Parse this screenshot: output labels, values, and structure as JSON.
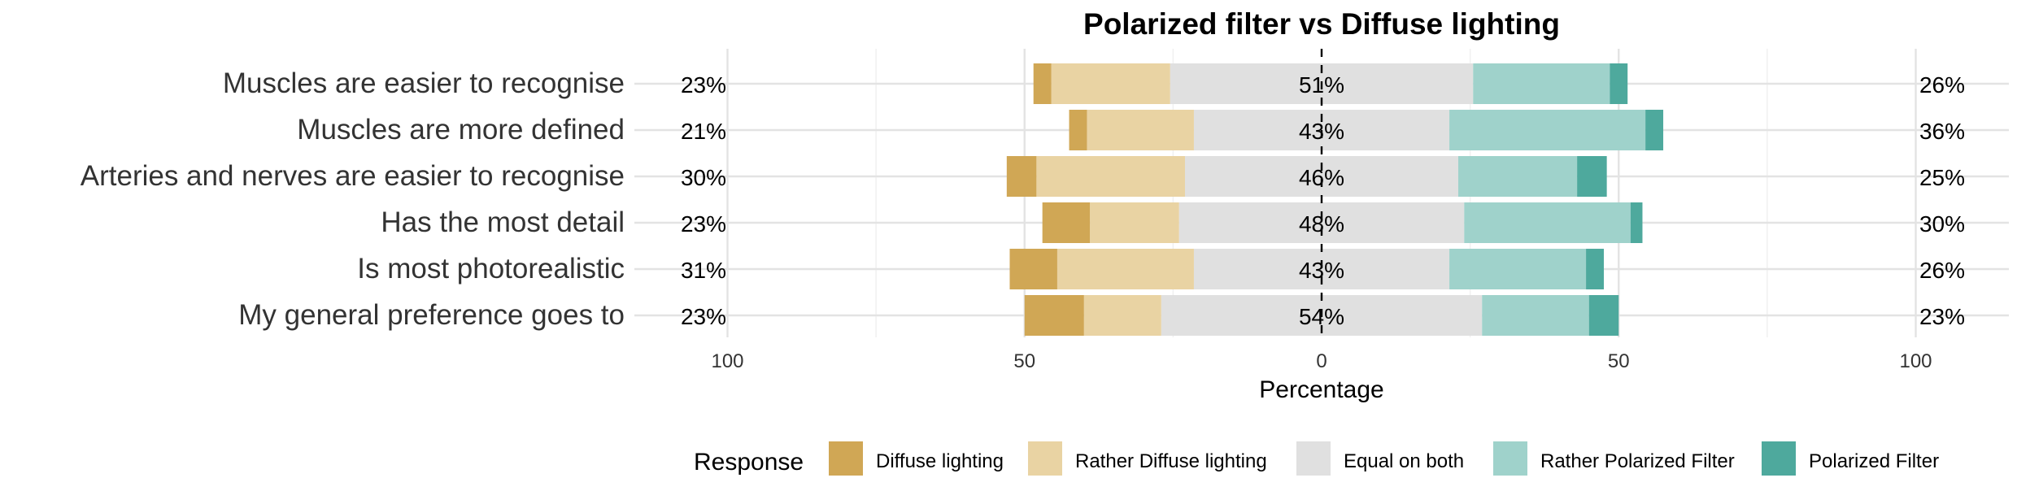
{
  "chart_data": {
    "type": "bar",
    "orientation": "horizontal",
    "stacking": "diverging",
    "title": "Polarized filter vs Diffuse lighting",
    "xlabel": "Percentage",
    "ylabel": "",
    "xlim": [
      -100,
      100
    ],
    "x_ticks": [
      -100,
      -50,
      0,
      50,
      100
    ],
    "x_tick_labels": [
      "100",
      "50",
      "0",
      "50",
      "100"
    ],
    "grid": true,
    "legend_title": "Response",
    "legend_position": "bottom",
    "categories": [
      "Muscles are easier to recognise",
      "Muscles are more defined",
      "Arteries and nerves are easier to recognise",
      "Has the most detail",
      "Is most photorealistic",
      "My general preference goes to"
    ],
    "series": [
      {
        "name": "Diffuse lighting",
        "color": "#d0a755",
        "side": "negative",
        "values": [
          3,
          3,
          5,
          8,
          8,
          10
        ]
      },
      {
        "name": "Rather Diffuse lighting",
        "color": "#e9d3a3",
        "side": "negative",
        "values": [
          20,
          18,
          25,
          15,
          23,
          13
        ]
      },
      {
        "name": "Equal on both",
        "color": "#e0e0e0",
        "side": "neutral",
        "values": [
          51,
          43,
          46,
          48,
          43,
          54
        ]
      },
      {
        "name": "Rather Polarized Filter",
        "color": "#9fd2cb",
        "side": "positive",
        "values": [
          23,
          33,
          20,
          28,
          23,
          18
        ]
      },
      {
        "name": "Polarized Filter",
        "color": "#4ea99d",
        "side": "positive",
        "values": [
          3,
          3,
          5,
          2,
          3,
          5
        ]
      }
    ],
    "left_percent_labels": [
      "23%",
      "21%",
      "30%",
      "23%",
      "31%",
      "23%"
    ],
    "center_percent_labels": [
      "51%",
      "43%",
      "46%",
      "48%",
      "43%",
      "54%"
    ],
    "right_percent_labels": [
      "26%",
      "36%",
      "25%",
      "30%",
      "26%",
      "23%"
    ]
  }
}
